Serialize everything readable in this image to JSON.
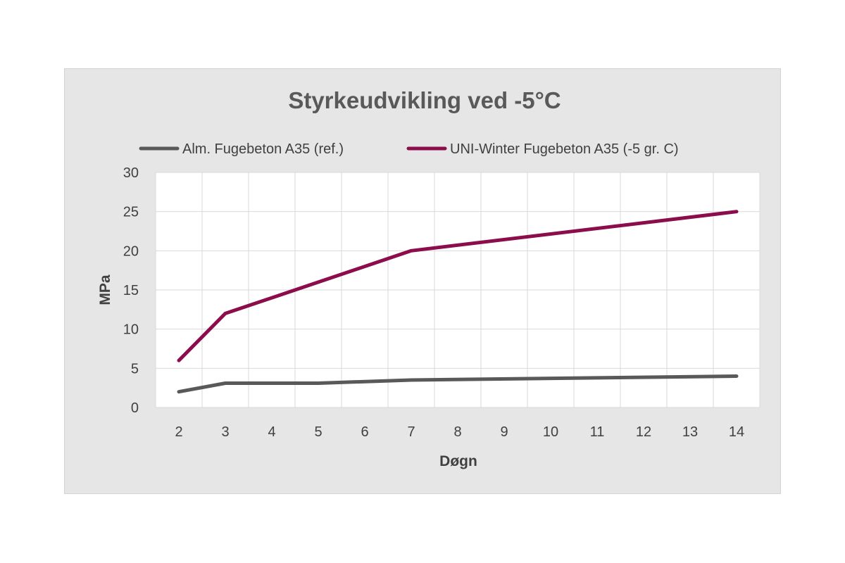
{
  "chart_data": {
    "type": "line",
    "title": "Styrkeudvikling ved -5°C",
    "xlabel": "Døgn",
    "ylabel": "MPa",
    "x": [
      2,
      3,
      4,
      5,
      6,
      7,
      8,
      9,
      10,
      11,
      12,
      13,
      14
    ],
    "xlim": [
      1.5,
      14.5
    ],
    "ylim": [
      0,
      30
    ],
    "yticks": [
      0,
      5,
      10,
      15,
      20,
      25,
      30
    ],
    "grid": true,
    "legend_position": "top",
    "series": [
      {
        "name": "Alm. Fugebeton A35 (ref.)",
        "color": "#595959",
        "x": [
          2,
          3,
          5,
          7,
          14
        ],
        "y": [
          2.0,
          3.1,
          3.1,
          3.5,
          4.0
        ]
      },
      {
        "name": "UNI-Winter Fugebeton A35 (-5 gr. C)",
        "color": "#8b0d4b",
        "x": [
          2,
          3,
          5,
          7,
          14
        ],
        "y": [
          6.0,
          12.0,
          16.0,
          20.0,
          25.0
        ]
      }
    ]
  }
}
